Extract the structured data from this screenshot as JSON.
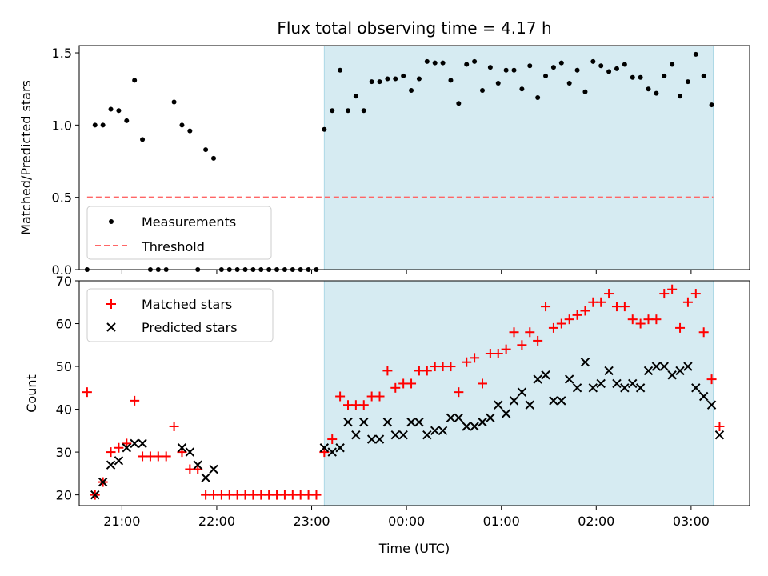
{
  "chart_data": [
    {
      "type": "scatter",
      "title": "Flux total observing time = 4.17 h",
      "xlabel": "",
      "ylabel": "Matched/Predicted stars",
      "ylim": [
        0,
        1.55
      ],
      "yticks": [
        0.0,
        0.5,
        1.0,
        1.5
      ],
      "ytick_labels": [
        "0.0",
        "0.5",
        "1.0",
        "1.5"
      ],
      "xlim": [
        "20:33",
        "03:37"
      ],
      "xticks": [
        "21:00",
        "22:00",
        "23:00",
        "00:00",
        "01:00",
        "02:00",
        "03:00"
      ],
      "xtick_labels": [
        "",
        "",
        "",
        "",
        "",
        "",
        ""
      ],
      "grid": false,
      "legend_position": "lower-left",
      "shaded_interval": {
        "start": "23:08",
        "end": "03:14",
        "color": "#add8e6"
      },
      "threshold": {
        "name": "Threshold",
        "value": 0.5,
        "x_start": "20:38",
        "x_end": "03:14",
        "color": "#ff6666",
        "style": "dashed"
      },
      "series": [
        {
          "name": "Measurements",
          "color": "#000000",
          "marker": "dot",
          "x": [
            "20:38",
            "20:43",
            "20:48",
            "20:53",
            "20:58",
            "21:03",
            "21:08",
            "21:13",
            "21:18",
            "21:23",
            "21:28",
            "21:33",
            "21:38",
            "21:43",
            "21:48",
            "21:53",
            "21:58",
            "22:03",
            "22:08",
            "22:13",
            "22:18",
            "22:23",
            "22:28",
            "22:33",
            "22:38",
            "22:43",
            "22:48",
            "22:53",
            "22:58",
            "23:03",
            "23:08",
            "23:13",
            "23:18",
            "23:23",
            "23:28",
            "23:33",
            "23:38",
            "23:43",
            "23:48",
            "23:53",
            "23:58",
            "00:03",
            "00:08",
            "00:13",
            "00:18",
            "00:23",
            "00:28",
            "00:33",
            "00:38",
            "00:43",
            "00:48",
            "00:53",
            "00:58",
            "01:03",
            "01:08",
            "01:13",
            "01:18",
            "01:23",
            "01:28",
            "01:33",
            "01:38",
            "01:43",
            "01:48",
            "01:53",
            "01:58",
            "02:03",
            "02:08",
            "02:13",
            "02:18",
            "02:23",
            "02:28",
            "02:33",
            "02:38",
            "02:43",
            "02:48",
            "02:53",
            "02:58",
            "03:03",
            "03:08",
            "03:13"
          ],
          "y": [
            0.0,
            1.0,
            1.0,
            1.11,
            1.1,
            1.03,
            1.31,
            0.9,
            0.0,
            0.0,
            0.0,
            1.16,
            1.0,
            0.96,
            0.0,
            0.83,
            0.77,
            0.0,
            0.0,
            0.0,
            0.0,
            0.0,
            0.0,
            0.0,
            0.0,
            0.0,
            0.0,
            0.0,
            0.0,
            0.0,
            0.97,
            1.1,
            1.38,
            1.1,
            1.2,
            1.1,
            1.3,
            1.3,
            1.32,
            1.32,
            1.34,
            1.24,
            1.32,
            1.44,
            1.43,
            1.43,
            1.31,
            1.15,
            1.42,
            1.44,
            1.24,
            1.4,
            1.29,
            1.38,
            1.38,
            1.25,
            1.41,
            1.19,
            1.34,
            1.4,
            1.43,
            1.29,
            1.38,
            1.23,
            1.44,
            1.41,
            1.37,
            1.39,
            1.42,
            1.33,
            1.33,
            1.25,
            1.22,
            1.34,
            1.42,
            1.2,
            1.3,
            1.49,
            1.34,
            1.14
          ]
        }
      ]
    },
    {
      "type": "scatter",
      "title": "",
      "xlabel": "Time (UTC)",
      "ylabel": "Count",
      "ylim": [
        17.5,
        70
      ],
      "yticks": [
        20,
        30,
        40,
        50,
        60,
        70
      ],
      "ytick_labels": [
        "20",
        "30",
        "40",
        "50",
        "60",
        "70"
      ],
      "xlim": [
        "20:33",
        "03:37"
      ],
      "xticks": [
        "21:00",
        "22:00",
        "23:00",
        "00:00",
        "01:00",
        "02:00",
        "03:00"
      ],
      "xtick_labels": [
        "21:00",
        "22:00",
        "23:00",
        "00:00",
        "01:00",
        "02:00",
        "03:00"
      ],
      "grid": false,
      "legend_position": "upper-left",
      "shaded_interval": {
        "start": "23:08",
        "end": "03:14",
        "color": "#add8e6"
      },
      "series": [
        {
          "name": "Matched stars",
          "color": "#ff0000",
          "marker": "plus",
          "x": [
            "20:38",
            "20:43",
            "20:48",
            "20:53",
            "20:58",
            "21:03",
            "21:08",
            "21:13",
            "21:18",
            "21:23",
            "21:28",
            "21:33",
            "21:38",
            "21:43",
            "21:48",
            "21:53",
            "21:58",
            "22:03",
            "22:08",
            "22:13",
            "22:18",
            "22:23",
            "22:28",
            "22:33",
            "22:38",
            "22:43",
            "22:48",
            "22:53",
            "22:58",
            "23:03",
            "23:08",
            "23:13",
            "23:18",
            "23:23",
            "23:28",
            "23:33",
            "23:38",
            "23:43",
            "23:48",
            "23:53",
            "23:58",
            "00:03",
            "00:08",
            "00:13",
            "00:18",
            "00:23",
            "00:28",
            "00:33",
            "00:38",
            "00:43",
            "00:48",
            "00:53",
            "00:58",
            "01:03",
            "01:08",
            "01:13",
            "01:18",
            "01:23",
            "01:28",
            "01:33",
            "01:38",
            "01:43",
            "01:48",
            "01:53",
            "01:58",
            "02:03",
            "02:08",
            "02:13",
            "02:18",
            "02:23",
            "02:28",
            "02:33",
            "02:38",
            "02:43",
            "02:48",
            "02:53",
            "02:58",
            "03:03",
            "03:08",
            "03:13",
            "03:18"
          ],
          "y": [
            44,
            20,
            23,
            30,
            31,
            32,
            42,
            29,
            29,
            29,
            29,
            36,
            30,
            26,
            26,
            20,
            20,
            20,
            20,
            20,
            20,
            20,
            20,
            20,
            20,
            20,
            20,
            20,
            20,
            20,
            30,
            33,
            43,
            41,
            41,
            41,
            43,
            43,
            49,
            45,
            46,
            46,
            49,
            49,
            50,
            50,
            50,
            44,
            51,
            52,
            46,
            53,
            53,
            54,
            58,
            55,
            58,
            56,
            64,
            59,
            60,
            61,
            62,
            63,
            65,
            65,
            67,
            64,
            64,
            61,
            60,
            61,
            61,
            67,
            68,
            59,
            65,
            67,
            58,
            47,
            36
          ]
        },
        {
          "name": "Predicted stars",
          "color": "#000000",
          "marker": "x",
          "x": [
            "20:43",
            "20:48",
            "20:53",
            "20:58",
            "21:03",
            "21:08",
            "21:13",
            "21:38",
            "21:43",
            "21:48",
            "21:53",
            "21:58",
            "23:08",
            "23:13",
            "23:18",
            "23:23",
            "23:28",
            "23:33",
            "23:38",
            "23:43",
            "23:48",
            "23:53",
            "23:58",
            "00:03",
            "00:08",
            "00:13",
            "00:18",
            "00:23",
            "00:28",
            "00:33",
            "00:38",
            "00:43",
            "00:48",
            "00:53",
            "00:58",
            "01:03",
            "01:08",
            "01:13",
            "01:18",
            "01:23",
            "01:28",
            "01:33",
            "01:38",
            "01:43",
            "01:48",
            "01:53",
            "01:58",
            "02:03",
            "02:08",
            "02:13",
            "02:18",
            "02:23",
            "02:28",
            "02:33",
            "02:38",
            "02:43",
            "02:48",
            "02:53",
            "02:58",
            "03:03",
            "03:08",
            "03:13",
            "03:18"
          ],
          "y": [
            20,
            23,
            27,
            28,
            31,
            32,
            32,
            31,
            30,
            27,
            24,
            26,
            31,
            30,
            31,
            37,
            34,
            37,
            33,
            33,
            37,
            34,
            34,
            37,
            37,
            34,
            35,
            35,
            38,
            38,
            36,
            36,
            37,
            38,
            41,
            39,
            42,
            44,
            41,
            47,
            48,
            42,
            42,
            47,
            45,
            51,
            45,
            46,
            49,
            46,
            45,
            46,
            45,
            49,
            50,
            50,
            48,
            49,
            50,
            45,
            43,
            41,
            34
          ]
        }
      ]
    }
  ]
}
